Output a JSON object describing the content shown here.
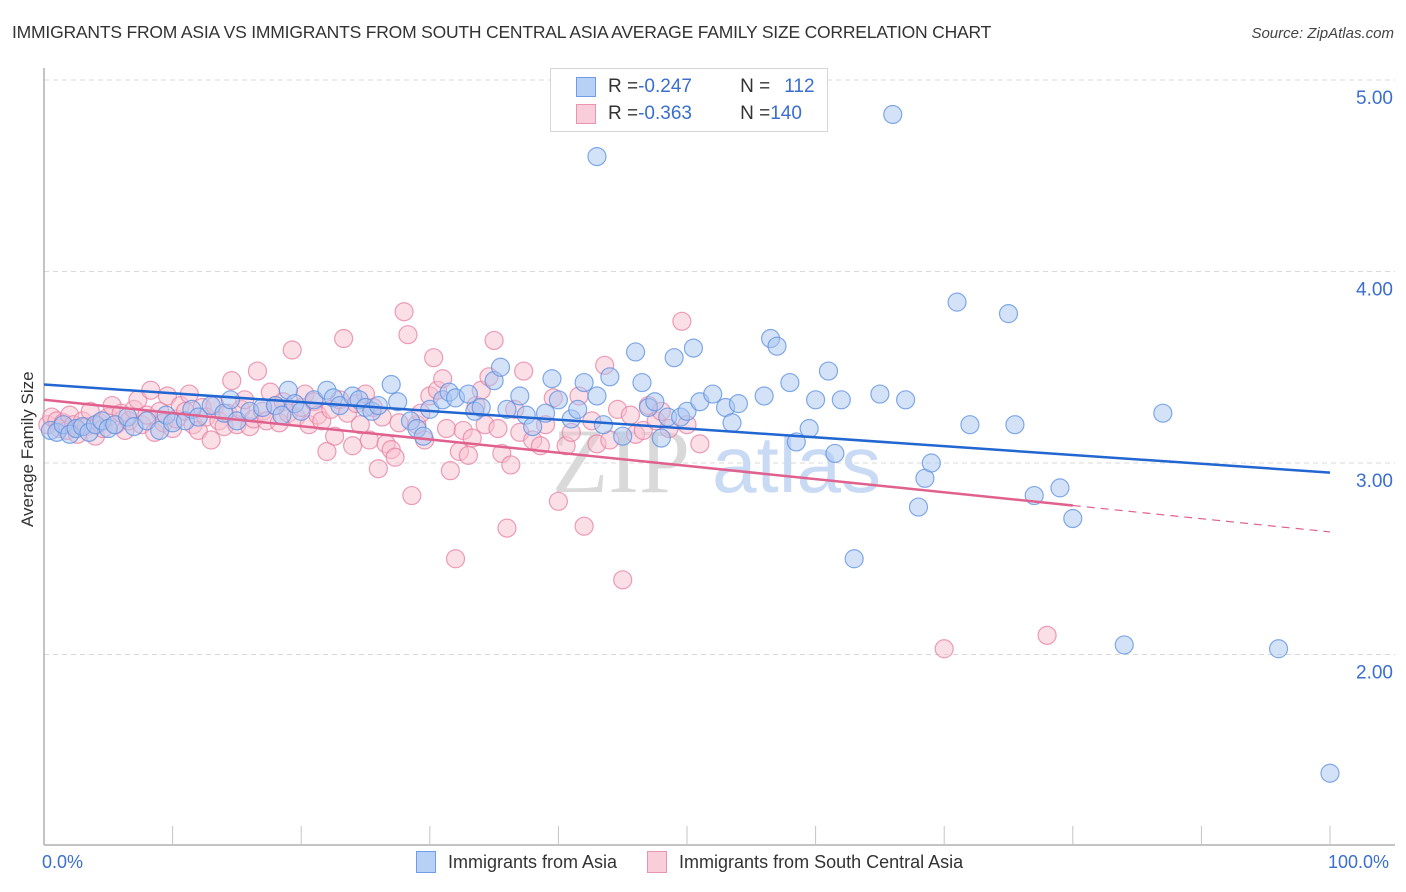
{
  "title": "IMMIGRANTS FROM ASIA VS IMMIGRANTS FROM SOUTH CENTRAL ASIA AVERAGE FAMILY SIZE CORRELATION CHART",
  "source": "Source: ZipAtlas.com",
  "watermark": {
    "zip": "ZIP",
    "atlas": "atlas"
  },
  "legend_top": [
    {
      "r_label": "R = ",
      "r_value": "-0.247",
      "n_label": "N = ",
      "n_value": "112"
    },
    {
      "r_label": "R = ",
      "r_value": "-0.363",
      "n_label": "N = ",
      "n_value": "140"
    }
  ],
  "chart_data": {
    "type": "scatter",
    "title": "IMMIGRANTS FROM ASIA VS IMMIGRANTS FROM SOUTH CENTRAL ASIA AVERAGE FAMILY SIZE CORRELATION CHART",
    "xlabel": "",
    "ylabel": "Average Family Size",
    "xlim": [
      0,
      100
    ],
    "ylim": [
      1.0,
      5.1
    ],
    "x_tick_labels": [
      "0.0%",
      "100.0%"
    ],
    "y_ticks": [
      2.0,
      3.0,
      4.0,
      5.0
    ],
    "y_tick_labels": [
      "2.00",
      "3.00",
      "4.00",
      "5.00"
    ],
    "grid": true,
    "legend": "bottom-center",
    "colors": {
      "asia": "#5b8fe0",
      "asia_fill": "#a9c6f2",
      "asia_line": "#2166d1",
      "sca": "#e77ea0",
      "sca_fill": "#f7bfd0",
      "sca_line": "#e0618d"
    },
    "series": [
      {
        "name": "Immigrants from Asia",
        "stats": {
          "R": -0.247,
          "N": 112
        },
        "trend": {
          "x": [
            0,
            100
          ],
          "y": [
            3.41,
            2.95
          ],
          "dashed_from": null
        },
        "points": [
          [
            0.5,
            3.17
          ],
          [
            1,
            3.16
          ],
          [
            1.5,
            3.2
          ],
          [
            2,
            3.15
          ],
          [
            2.5,
            3.18
          ],
          [
            3,
            3.19
          ],
          [
            3.5,
            3.16
          ],
          [
            4,
            3.2
          ],
          [
            4.5,
            3.22
          ],
          [
            5,
            3.18
          ],
          [
            5.5,
            3.2
          ],
          [
            6.5,
            3.24
          ],
          [
            7,
            3.19
          ],
          [
            8,
            3.22
          ],
          [
            9,
            3.17
          ],
          [
            9.5,
            3.25
          ],
          [
            10,
            3.21
          ],
          [
            11,
            3.22
          ],
          [
            11.5,
            3.28
          ],
          [
            12,
            3.24
          ],
          [
            13,
            3.3
          ],
          [
            14,
            3.26
          ],
          [
            14.5,
            3.33
          ],
          [
            15,
            3.22
          ],
          [
            16,
            3.27
          ],
          [
            17,
            3.29
          ],
          [
            18,
            3.3
          ],
          [
            18.5,
            3.25
          ],
          [
            19,
            3.38
          ],
          [
            19.5,
            3.31
          ],
          [
            20,
            3.27
          ],
          [
            21,
            3.33
          ],
          [
            22,
            3.38
          ],
          [
            22.5,
            3.34
          ],
          [
            23,
            3.3
          ],
          [
            24,
            3.35
          ],
          [
            24.5,
            3.33
          ],
          [
            25,
            3.29
          ],
          [
            25.5,
            3.27
          ],
          [
            26,
            3.3
          ],
          [
            27,
            3.41
          ],
          [
            27.5,
            3.32
          ],
          [
            28.5,
            3.22
          ],
          [
            29,
            3.18
          ],
          [
            29.5,
            3.14
          ],
          [
            30,
            3.28
          ],
          [
            31,
            3.33
          ],
          [
            31.5,
            3.37
          ],
          [
            32,
            3.34
          ],
          [
            33,
            3.36
          ],
          [
            33.5,
            3.27
          ],
          [
            34,
            3.29
          ],
          [
            35,
            3.43
          ],
          [
            35.5,
            3.5
          ],
          [
            36,
            3.28
          ],
          [
            37,
            3.35
          ],
          [
            37.5,
            3.25
          ],
          [
            38,
            3.19
          ],
          [
            39,
            3.26
          ],
          [
            39.5,
            3.44
          ],
          [
            40,
            3.33
          ],
          [
            41,
            3.23
          ],
          [
            41.5,
            3.28
          ],
          [
            42,
            3.42
          ],
          [
            43,
            3.35
          ],
          [
            43.5,
            3.2
          ],
          [
            44,
            3.45
          ],
          [
            45,
            3.14
          ],
          [
            46,
            3.58
          ],
          [
            46.5,
            3.42
          ],
          [
            47,
            3.29
          ],
          [
            47.5,
            3.32
          ],
          [
            48,
            3.13
          ],
          [
            48.5,
            3.24
          ],
          [
            49,
            3.55
          ],
          [
            49.5,
            3.24
          ],
          [
            50,
            3.27
          ],
          [
            50.5,
            3.6
          ],
          [
            51,
            3.32
          ],
          [
            52,
            3.36
          ],
          [
            53,
            3.29
          ],
          [
            53.5,
            3.21
          ],
          [
            54,
            3.31
          ],
          [
            56,
            3.35
          ],
          [
            56.5,
            3.65
          ],
          [
            57,
            3.61
          ],
          [
            58,
            3.42
          ],
          [
            58.5,
            3.11
          ],
          [
            59.5,
            3.18
          ],
          [
            60,
            3.33
          ],
          [
            61,
            3.48
          ],
          [
            61.5,
            3.05
          ],
          [
            62,
            3.33
          ],
          [
            63,
            2.5
          ],
          [
            65,
            3.36
          ],
          [
            67,
            3.33
          ],
          [
            68,
            2.77
          ],
          [
            68.5,
            2.92
          ],
          [
            69,
            3.0
          ],
          [
            71,
            3.84
          ],
          [
            72,
            3.2
          ],
          [
            75,
            3.78
          ],
          [
            75.5,
            3.2
          ],
          [
            77,
            2.83
          ],
          [
            79,
            2.87
          ],
          [
            80,
            2.71
          ],
          [
            84,
            2.05
          ],
          [
            87,
            3.26
          ],
          [
            96,
            2.03
          ],
          [
            100,
            1.38
          ],
          [
            43,
            4.6
          ],
          [
            66,
            4.82
          ]
        ]
      },
      {
        "name": "Immigrants from South Central Asia",
        "stats": {
          "R": -0.363,
          "N": 140
        },
        "trend": {
          "x": [
            0,
            100
          ],
          "y": [
            3.33,
            2.64
          ],
          "dashed_from": 80
        },
        "points": [
          [
            0.3,
            3.2
          ],
          [
            0.6,
            3.24
          ],
          [
            1,
            3.22
          ],
          [
            1.2,
            3.18
          ],
          [
            1.5,
            3.21
          ],
          [
            1.8,
            3.17
          ],
          [
            2,
            3.25
          ],
          [
            2.3,
            3.2
          ],
          [
            2.6,
            3.15
          ],
          [
            3,
            3.22
          ],
          [
            3.3,
            3.19
          ],
          [
            3.6,
            3.27
          ],
          [
            4,
            3.14
          ],
          [
            4.3,
            3.21
          ],
          [
            4.6,
            3.18
          ],
          [
            5,
            3.24
          ],
          [
            5.3,
            3.3
          ],
          [
            5.6,
            3.2
          ],
          [
            6,
            3.26
          ],
          [
            6.3,
            3.17
          ],
          [
            6.6,
            3.22
          ],
          [
            7,
            3.28
          ],
          [
            7.3,
            3.33
          ],
          [
            7.6,
            3.2
          ],
          [
            8,
            3.25
          ],
          [
            8.3,
            3.38
          ],
          [
            8.6,
            3.16
          ],
          [
            9,
            3.27
          ],
          [
            9.3,
            3.21
          ],
          [
            9.6,
            3.35
          ],
          [
            10,
            3.18
          ],
          [
            10.3,
            3.23
          ],
          [
            10.6,
            3.3
          ],
          [
            11,
            3.27
          ],
          [
            11.3,
            3.36
          ],
          [
            11.6,
            3.2
          ],
          [
            12,
            3.17
          ],
          [
            12.3,
            3.29
          ],
          [
            12.6,
            3.24
          ],
          [
            13,
            3.12
          ],
          [
            13.3,
            3.3
          ],
          [
            13.6,
            3.22
          ],
          [
            14,
            3.19
          ],
          [
            14.3,
            3.26
          ],
          [
            14.6,
            3.43
          ],
          [
            15,
            3.2
          ],
          [
            15.3,
            3.28
          ],
          [
            15.6,
            3.33
          ],
          [
            16,
            3.19
          ],
          [
            16.3,
            3.23
          ],
          [
            16.6,
            3.48
          ],
          [
            17,
            3.27
          ],
          [
            17.3,
            3.22
          ],
          [
            17.6,
            3.37
          ],
          [
            18,
            3.3
          ],
          [
            18.3,
            3.21
          ],
          [
            18.6,
            3.32
          ],
          [
            19,
            3.26
          ],
          [
            19.3,
            3.59
          ],
          [
            19.6,
            3.24
          ],
          [
            20,
            3.29
          ],
          [
            20.3,
            3.36
          ],
          [
            20.6,
            3.2
          ],
          [
            21,
            3.32
          ],
          [
            21.3,
            3.25
          ],
          [
            21.6,
            3.22
          ],
          [
            22,
            3.06
          ],
          [
            22.3,
            3.28
          ],
          [
            22.6,
            3.14
          ],
          [
            23,
            3.33
          ],
          [
            23.3,
            3.65
          ],
          [
            23.6,
            3.26
          ],
          [
            24,
            3.09
          ],
          [
            24.3,
            3.31
          ],
          [
            24.6,
            3.2
          ],
          [
            25,
            3.36
          ],
          [
            25.3,
            3.12
          ],
          [
            25.6,
            3.29
          ],
          [
            26,
            2.97
          ],
          [
            26.3,
            3.24
          ],
          [
            26.6,
            3.1
          ],
          [
            27,
            3.07
          ],
          [
            27.3,
            3.03
          ],
          [
            27.6,
            3.21
          ],
          [
            28,
            3.79
          ],
          [
            28.3,
            3.67
          ],
          [
            28.6,
            2.83
          ],
          [
            29,
            3.2
          ],
          [
            29.3,
            3.26
          ],
          [
            29.6,
            3.12
          ],
          [
            30,
            3.35
          ],
          [
            30.3,
            3.55
          ],
          [
            30.6,
            3.38
          ],
          [
            31,
            3.44
          ],
          [
            31.3,
            3.18
          ],
          [
            31.6,
            2.96
          ],
          [
            32,
            2.5
          ],
          [
            32.3,
            3.06
          ],
          [
            32.6,
            3.17
          ],
          [
            33,
            3.04
          ],
          [
            33.3,
            3.13
          ],
          [
            33.6,
            3.3
          ],
          [
            34,
            3.38
          ],
          [
            34.3,
            3.2
          ],
          [
            34.6,
            3.45
          ],
          [
            35,
            3.64
          ],
          [
            35.3,
            3.18
          ],
          [
            35.6,
            3.05
          ],
          [
            36,
            2.66
          ],
          [
            36.3,
            2.99
          ],
          [
            36.6,
            3.28
          ],
          [
            37,
            3.16
          ],
          [
            37.3,
            3.48
          ],
          [
            38,
            3.12
          ],
          [
            38.6,
            3.09
          ],
          [
            39,
            3.2
          ],
          [
            39.6,
            3.34
          ],
          [
            40,
            2.8
          ],
          [
            40.6,
            3.09
          ],
          [
            41,
            3.16
          ],
          [
            41.6,
            3.35
          ],
          [
            42,
            2.67
          ],
          [
            42.6,
            3.22
          ],
          [
            43,
            3.1
          ],
          [
            43.6,
            3.51
          ],
          [
            44,
            3.12
          ],
          [
            44.6,
            3.28
          ],
          [
            45,
            2.39
          ],
          [
            45.6,
            3.25
          ],
          [
            46,
            3.15
          ],
          [
            46.6,
            3.17
          ],
          [
            47,
            3.3
          ],
          [
            47.6,
            3.22
          ],
          [
            48,
            3.27
          ],
          [
            48.6,
            3.18
          ],
          [
            49.6,
            3.74
          ],
          [
            50,
            3.2
          ],
          [
            51,
            3.1
          ],
          [
            70,
            2.03
          ],
          [
            78,
            2.1
          ]
        ]
      }
    ]
  },
  "axes": {
    "x_min_label": "0.0%",
    "x_max_label": "100.0%",
    "y_title": "Average Family Size"
  },
  "bottom_legend": [
    {
      "label": "Immigrants from Asia"
    },
    {
      "label": "Immigrants from South Central Asia"
    }
  ]
}
